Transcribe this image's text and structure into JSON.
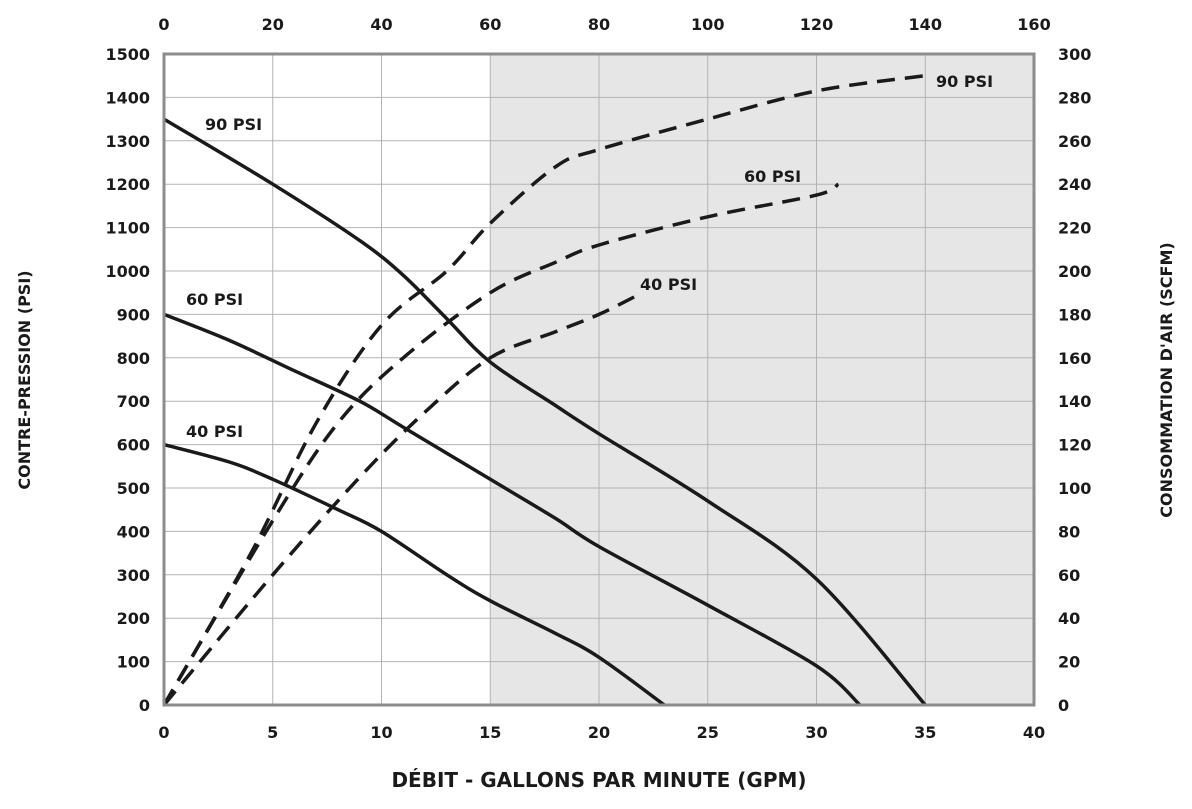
{
  "chart_data": {
    "type": "line",
    "title": "",
    "xlabel": "DÉBIT - GALLONS PAR MINUTE (GPM)",
    "ylabel": "CONTRE-PRESSION (PSI)",
    "y2label": "CONSOMMATION D'AIR (SCFM)",
    "xlim": [
      0,
      40
    ],
    "ylim": [
      0,
      1500
    ],
    "x2lim": [
      0,
      160
    ],
    "y2lim": [
      0,
      300
    ],
    "x_ticks": [
      "0",
      "5",
      "10",
      "15",
      "20",
      "25",
      "30",
      "35",
      "40"
    ],
    "y_ticks": [
      "0",
      "100",
      "200",
      "300",
      "400",
      "500",
      "600",
      "700",
      "800",
      "900",
      "1000",
      "1100",
      "1200",
      "1300",
      "1400",
      "1500"
    ],
    "x2_ticks": [
      "0",
      "20",
      "40",
      "60",
      "80",
      "100",
      "120",
      "140",
      "160"
    ],
    "y2_ticks": [
      "0",
      "20",
      "40",
      "60",
      "80",
      "100",
      "120",
      "140",
      "160",
      "180",
      "200",
      "220",
      "240",
      "260",
      "280",
      "300"
    ],
    "grid": true,
    "shaded_region": {
      "x_from": 15,
      "x_to": 40,
      "color": "#e6e6e6"
    },
    "series": [
      {
        "name": "90 PSI",
        "axis": "primary",
        "style": "solid",
        "points": [
          [
            0,
            1350
          ],
          [
            5,
            1200
          ],
          [
            9,
            1070
          ],
          [
            11,
            990
          ],
          [
            13,
            890
          ],
          [
            15,
            790
          ],
          [
            18,
            690
          ],
          [
            20,
            625
          ],
          [
            25,
            470
          ],
          [
            30,
            290
          ],
          [
            35,
            0
          ]
        ]
      },
      {
        "name": "60 PSI",
        "axis": "primary",
        "style": "solid",
        "points": [
          [
            0,
            900
          ],
          [
            3,
            840
          ],
          [
            6,
            770
          ],
          [
            9,
            700
          ],
          [
            11,
            640
          ],
          [
            15,
            520
          ],
          [
            18,
            430
          ],
          [
            20,
            365
          ],
          [
            25,
            230
          ],
          [
            30,
            90
          ],
          [
            32,
            0
          ]
        ]
      },
      {
        "name": "40 PSI",
        "axis": "primary",
        "style": "solid",
        "points": [
          [
            0,
            600
          ],
          [
            3,
            560
          ],
          [
            5,
            520
          ],
          [
            8,
            450
          ],
          [
            10,
            400
          ],
          [
            13,
            300
          ],
          [
            15,
            240
          ],
          [
            18,
            165
          ],
          [
            20,
            110
          ],
          [
            23,
            0
          ]
        ]
      },
      {
        "name": "90 PSI",
        "axis": "secondary",
        "style": "dashed",
        "points": [
          [
            0,
            0
          ],
          [
            4,
            70
          ],
          [
            7,
            130
          ],
          [
            10,
            175
          ],
          [
            13,
            200
          ],
          [
            15,
            222
          ],
          [
            18,
            248
          ],
          [
            20,
            256
          ],
          [
            25,
            270
          ],
          [
            30,
            283
          ],
          [
            35,
            290
          ]
        ]
      },
      {
        "name": "60 PSI",
        "axis": "secondary",
        "style": "dashed",
        "points": [
          [
            0,
            0
          ],
          [
            5,
            85
          ],
          [
            8,
            130
          ],
          [
            11,
            160
          ],
          [
            15,
            190
          ],
          [
            18,
            204
          ],
          [
            20,
            212
          ],
          [
            25,
            225
          ],
          [
            30,
            235
          ],
          [
            31,
            240
          ]
        ]
      },
      {
        "name": "40 PSI",
        "axis": "secondary",
        "style": "dashed",
        "points": [
          [
            0,
            0
          ],
          [
            5,
            60
          ],
          [
            9,
            105
          ],
          [
            12,
            135
          ],
          [
            15,
            160
          ],
          [
            18,
            172
          ],
          [
            20,
            180
          ],
          [
            22,
            190
          ]
        ]
      }
    ],
    "annotations": [
      {
        "text": "90 PSI",
        "series_index": 0
      },
      {
        "text": "60 PSI",
        "series_index": 1
      },
      {
        "text": "40 PSI",
        "series_index": 2
      },
      {
        "text": "90 PSI",
        "series_index": 3
      },
      {
        "text": "60 PSI",
        "series_index": 4
      },
      {
        "text": "40 PSI",
        "series_index": 5
      }
    ]
  }
}
